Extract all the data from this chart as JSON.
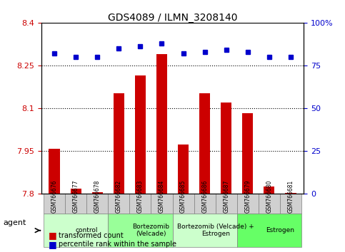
{
  "title": "GDS4089 / ILMN_3208140",
  "samples": [
    "GSM766676",
    "GSM766677",
    "GSM766678",
    "GSM766682",
    "GSM766683",
    "GSM766684",
    "GSM766685",
    "GSM766686",
    "GSM766687",
    "GSM766679",
    "GSM766680",
    "GSM766681"
  ],
  "red_values": [
    7.957,
    7.818,
    7.804,
    8.153,
    8.215,
    8.29,
    7.973,
    8.153,
    8.12,
    8.083,
    7.825,
    7.803
  ],
  "blue_values": [
    82,
    80,
    80,
    85,
    86,
    88,
    82,
    83,
    84,
    83,
    80,
    80
  ],
  "ylim_left": [
    7.8,
    8.4
  ],
  "ylim_right": [
    0,
    100
  ],
  "yticks_left": [
    7.8,
    7.95,
    8.1,
    8.25,
    8.4
  ],
  "yticks_right": [
    0,
    25,
    50,
    75,
    100
  ],
  "groups": [
    {
      "label": "control",
      "start": 0,
      "end": 3,
      "color": "#ccffcc"
    },
    {
      "label": "Bortezomib\n(Velcade)",
      "start": 3,
      "end": 6,
      "color": "#99ff99"
    },
    {
      "label": "Bortezomib (Velcade) +\nEstrogen",
      "start": 6,
      "end": 9,
      "color": "#ccffcc"
    },
    {
      "label": "Estrogen",
      "start": 9,
      "end": 12,
      "color": "#66ff66"
    }
  ],
  "red_color": "#cc0000",
  "blue_color": "#0000cc",
  "bar_width": 0.5,
  "bar_bottom": 7.8,
  "legend_red": "transformed count",
  "legend_blue": "percentile rank within the sample",
  "agent_label": "agent"
}
